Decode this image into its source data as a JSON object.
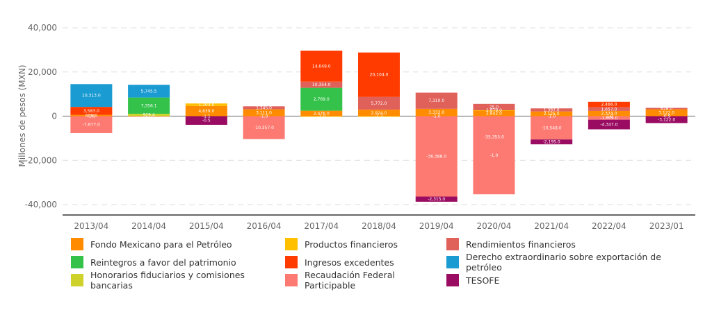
{
  "chart_data": {
    "type": "bar",
    "stacked": true,
    "title": "",
    "xlabel": "",
    "ylabel": "Millones de pesos (MXN)",
    "ylim": [
      -40000,
      40000
    ],
    "yticks": [
      40000,
      20000,
      0,
      -20000,
      -40000
    ],
    "ytick_labels": [
      "40,000",
      "20,000",
      "0",
      "-20,000",
      "-40,000"
    ],
    "grid": true,
    "legend_position": "bottom",
    "categories": [
      "2013/04",
      "2014/04",
      "2015/04",
      "2016/04",
      "2017/04",
      "2018/04",
      "2019/04",
      "2020/04",
      "2021/04",
      "2022/04",
      "2023/01"
    ],
    "series": [
      {
        "name": "Fondo Mexicano para el Petróleo",
        "color": "#ff8c00",
        "values": [
          608.0,
          150.0,
          4639.0,
          3111.0,
          2476.0,
          2924.0,
          3332.0,
          2642.0,
          2125.0,
          2374.0,
          3122.0
        ]
      },
      {
        "name": "Honorarios fiduciarios y comisiones bancarias",
        "color": "#cfd22a",
        "values": [
          0,
          929.4,
          0,
          0,
          0,
          0,
          0,
          0,
          0,
          0,
          0
        ]
      },
      {
        "name": "Reintegros a favor del patrimonio",
        "color": "#34c24a",
        "values": [
          0,
          7356.1,
          0,
          0,
          10354.0,
          0,
          0,
          0,
          0,
          0,
          0
        ]
      },
      {
        "name": "Productos financieros",
        "color": "#ffc000",
        "values": [
          -1.0,
          0,
          1103.0,
          -1.0,
          -1.0,
          -1.2,
          -1.0,
          25.0,
          -1.0,
          -1.0,
          -0.9
        ]
      },
      {
        "name": "Rendimientos financieros",
        "color": "#e0605a",
        "values": [
          0,
          0,
          0,
          1345.0,
          2769.0,
          5772.0,
          7310.0,
          2879.0,
          1397.0,
          1657.0,
          628.0
        ]
      },
      {
        "name": "Ingresos excedentes",
        "color": "#ff3b00",
        "values": [
          3583.0,
          0,
          0,
          0,
          14049.0,
          20104.0,
          0,
          0,
          0,
          2466.0,
          0
        ]
      },
      {
        "name": "Derecho extraordinario sobre exportación de petróleo",
        "color": "#1a9bd1",
        "values": [
          10313.0,
          5745.5,
          0,
          0,
          0,
          0,
          0,
          0,
          0,
          0,
          0
        ]
      },
      {
        "name": "Recaudación Federal Participable",
        "color": "#fd7a72",
        "values": [
          -7677.0,
          0,
          -0.5,
          -10357.0,
          0,
          0,
          -36388.0,
          -35355.0,
          -10548.0,
          -1609.0,
          0
        ]
      },
      {
        "name": "TESOFE",
        "color": "#9a0b62",
        "values": [
          0,
          0,
          -3901.0,
          0,
          0,
          0,
          -2315.0,
          0,
          -2195.0,
          -4347.0,
          -3122.0
        ]
      }
    ],
    "labels": {
      "2013/04": [
        "10,313.0",
        "3,583.0",
        "608.0",
        "-1.0",
        "-7,677.0"
      ],
      "2014/04": [
        "5,745.5",
        "7,356.1",
        "929.4"
      ],
      "2015/04": [
        "1,103.0",
        "4,639.0",
        "-1.1",
        "-0.5",
        "-3,901.0"
      ],
      "2016/04": [
        "1,345.0",
        "3,111.0",
        "-1.0",
        "-10,357.0"
      ],
      "2017/04": [
        "14,049.0",
        "10,354.0",
        "2,769.0",
        "2,476.0",
        "-1.0"
      ],
      "2018/04": [
        "20,104.0",
        "5,772.0",
        "2,924.0",
        "-1.2"
      ],
      "2019/04": [
        "7,310.0",
        "3,332.0",
        "-1.0",
        "-36,388.0",
        "-2,315.0"
      ],
      "2020/04": [
        "25.0",
        "2,879.0",
        "2,642.0",
        "-1.0",
        "-35,355.0"
      ],
      "2021/04": [
        "1,397.0",
        "2,125.0",
        "-1.0",
        "-10,548.0",
        "-2,195.0"
      ],
      "2022/04": [
        "2,466.0",
        "1,657.0",
        "2,374.0",
        "-1.0",
        "-1,609.0",
        "-4,347.0"
      ],
      "2023/01": [
        "628.0",
        "3,122.0",
        "-0.9",
        "-3,122.0"
      ]
    }
  },
  "legend": {
    "items": [
      {
        "label": "Fondo Mexicano para el Petróleo",
        "color": "#ff8c00"
      },
      {
        "label": "Productos financieros",
        "color": "#ffc000"
      },
      {
        "label": "Rendimientos financieros",
        "color": "#e0605a"
      },
      {
        "label": "Reintegros a favor del patrimonio",
        "color": "#34c24a"
      },
      {
        "label": "Ingresos excedentes",
        "color": "#ff3b00"
      },
      {
        "label": "Derecho extraordinario sobre exportación de petróleo",
        "color": "#1a9bd1"
      },
      {
        "label": "Honorarios fiduciarios y comisiones bancarias",
        "color": "#cfd22a"
      },
      {
        "label": "Recaudación Federal Participable",
        "color": "#fd7a72"
      },
      {
        "label": "TESOFE",
        "color": "#9a0b62"
      }
    ]
  }
}
